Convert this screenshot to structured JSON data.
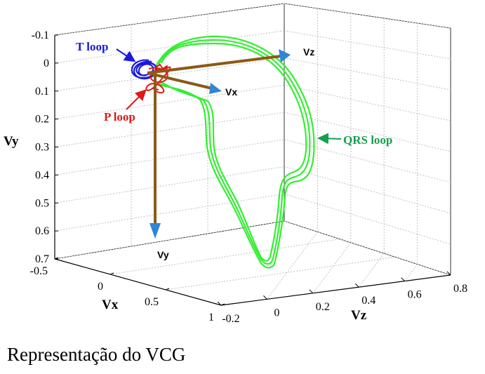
{
  "chart_data": {
    "type": "line",
    "projection": "3d",
    "x_axis": {
      "label": "Vx",
      "ticks": [
        "-0.5",
        "0",
        "0.5",
        "1"
      ],
      "range": [
        -0.5,
        1
      ]
    },
    "y_axis": {
      "label": "Vy",
      "ticks": [
        "-0.1",
        "0",
        "0.1",
        "0.2",
        "0.3",
        "0.4",
        "0.5",
        "0.6",
        "0.7"
      ],
      "range": [
        -0.1,
        0.7
      ],
      "reversed": true
    },
    "z_axis": {
      "label": "Vz",
      "ticks": [
        "-0.2",
        "0",
        "0.2",
        "0.4",
        "0.6",
        "0.8"
      ],
      "range": [
        -0.2,
        0.8
      ]
    },
    "grid": true,
    "vectors": [
      {
        "name": "Vz",
        "color": "#8B5A14",
        "arrow_color": "#2e86d6"
      },
      {
        "name": "Vx",
        "color": "#8B5A14",
        "arrow_color": "#2e86d6"
      },
      {
        "name": "Vy",
        "color": "#8B5A14",
        "arrow_color": "#2e86d6"
      }
    ],
    "series": [
      {
        "name": "QRS loop",
        "color": "#33ee33",
        "shape": "large triangular loop descending to Vy≈0.63, drawn as three nearly overlapping traces"
      },
      {
        "name": "T loop",
        "color": "#1a1adb",
        "shape": "small loop near origin"
      },
      {
        "name": "P loop",
        "color": "#e01818",
        "shape": "small loop near origin"
      }
    ],
    "annotations": [
      {
        "text": "T loop",
        "color": "#1a1adb"
      },
      {
        "text": "P loop",
        "color": "#e01818"
      },
      {
        "text": "QRS loop",
        "color": "#13a04a"
      }
    ]
  },
  "caption": "Representação do VCG"
}
